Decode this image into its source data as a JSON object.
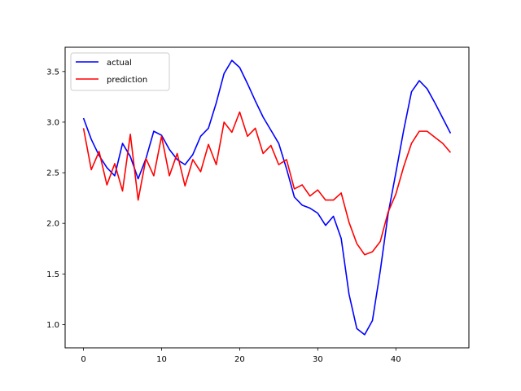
{
  "chart_data": {
    "type": "line",
    "title": "",
    "xlabel": "",
    "ylabel": "",
    "xlim": [
      -2.35,
      49.35
    ],
    "ylim": [
      0.77,
      3.74
    ],
    "xticks": [
      0,
      10,
      20,
      30,
      40
    ],
    "yticks": [
      1.0,
      1.5,
      2.0,
      2.5,
      3.0,
      3.5
    ],
    "xtick_labels": [
      "0",
      "10",
      "20",
      "30",
      "40"
    ],
    "ytick_labels": [
      "1.0",
      "1.5",
      "2.0",
      "2.5",
      "3.0",
      "3.5"
    ],
    "grid": false,
    "legend_position": "upper-left",
    "x": [
      0,
      1,
      2,
      3,
      4,
      5,
      6,
      7,
      8,
      9,
      10,
      11,
      12,
      13,
      14,
      15,
      16,
      17,
      18,
      19,
      20,
      21,
      22,
      23,
      24,
      25,
      26,
      27,
      28,
      29,
      30,
      31,
      32,
      33,
      34,
      35,
      36,
      37,
      38,
      39,
      40,
      41,
      42,
      43,
      44,
      45,
      46,
      47
    ],
    "series": [
      {
        "name": "actual",
        "color": "#0000ff",
        "values": [
          3.04,
          2.83,
          2.67,
          2.55,
          2.47,
          2.79,
          2.66,
          2.44,
          2.64,
          2.91,
          2.87,
          2.73,
          2.63,
          2.58,
          2.68,
          2.86,
          2.94,
          3.19,
          3.48,
          3.61,
          3.54,
          3.38,
          3.21,
          3.05,
          2.92,
          2.79,
          2.54,
          2.26,
          2.18,
          2.15,
          2.1,
          1.98,
          2.07,
          1.85,
          1.3,
          0.96,
          0.9,
          1.04,
          1.53,
          2.09,
          2.5,
          2.92,
          3.3,
          3.41,
          3.33,
          3.19,
          3.04,
          2.89
        ]
      },
      {
        "name": "prediction",
        "color": "#ff0000",
        "values": [
          2.94,
          2.53,
          2.71,
          2.38,
          2.59,
          2.32,
          2.88,
          2.23,
          2.64,
          2.47,
          2.86,
          2.47,
          2.69,
          2.37,
          2.63,
          2.51,
          2.78,
          2.58,
          3.0,
          2.9,
          3.1,
          2.86,
          2.94,
          2.69,
          2.77,
          2.58,
          2.63,
          2.34,
          2.38,
          2.27,
          2.33,
          2.23,
          2.23,
          2.3,
          2.01,
          1.8,
          1.69,
          1.72,
          1.82,
          2.11,
          2.29,
          2.56,
          2.79,
          2.91,
          2.91,
          2.85,
          2.79,
          2.7
        ]
      }
    ]
  }
}
